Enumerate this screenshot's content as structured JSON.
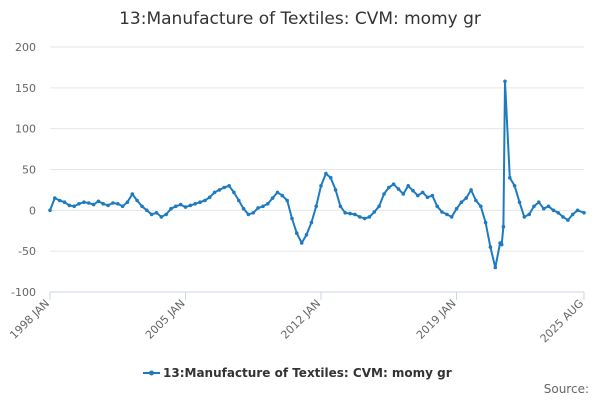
{
  "chart_data": {
    "type": "line",
    "title": "13:Manufacture of Textiles: CVM: momy gr",
    "xlabel": "",
    "ylabel": "",
    "ylim": [
      -100,
      200
    ],
    "yticks": [
      200,
      150,
      100,
      50,
      0,
      -50,
      -100
    ],
    "xticks": [
      "1998 JAN",
      "2005 JAN",
      "2012 JAN",
      "2019 JAN",
      "2025 AUG"
    ],
    "xtick_positions": [
      1998.0,
      2005.0,
      2012.0,
      2019.0,
      2025.583
    ],
    "xlim": [
      1998.0,
      2025.583
    ],
    "grid": true,
    "legend": "bottom-center",
    "series": [
      {
        "name": "13:Manufacture of Textiles: CVM: momy gr",
        "color": "#1f7bbf",
        "x": [
          1998.0,
          1998.25,
          1998.5,
          1998.75,
          1999.0,
          1999.25,
          1999.5,
          1999.75,
          2000.0,
          2000.25,
          2000.5,
          2000.75,
          2001.0,
          2001.25,
          2001.5,
          2001.75,
          2002.0,
          2002.25,
          2002.5,
          2002.75,
          2003.0,
          2003.25,
          2003.5,
          2003.75,
          2004.0,
          2004.25,
          2004.5,
          2004.75,
          2005.0,
          2005.25,
          2005.5,
          2005.75,
          2006.0,
          2006.25,
          2006.5,
          2006.75,
          2007.0,
          2007.25,
          2007.5,
          2007.75,
          2008.0,
          2008.25,
          2008.5,
          2008.75,
          2009.0,
          2009.25,
          2009.5,
          2009.75,
          2010.0,
          2010.25,
          2010.5,
          2010.75,
          2011.0,
          2011.25,
          2011.5,
          2011.75,
          2012.0,
          2012.25,
          2012.5,
          2012.75,
          2013.0,
          2013.25,
          2013.5,
          2013.75,
          2014.0,
          2014.25,
          2014.5,
          2014.75,
          2015.0,
          2015.25,
          2015.5,
          2015.75,
          2016.0,
          2016.25,
          2016.5,
          2016.75,
          2017.0,
          2017.25,
          2017.5,
          2017.75,
          2018.0,
          2018.25,
          2018.5,
          2018.75,
          2019.0,
          2019.25,
          2019.5,
          2019.75,
          2020.0,
          2020.25,
          2020.5,
          2020.75,
          2021.0,
          2021.25,
          2021.33,
          2021.42,
          2021.5,
          2021.75,
          2022.0,
          2022.25,
          2022.5,
          2022.75,
          2023.0,
          2023.25,
          2023.5,
          2023.75,
          2024.0,
          2024.25,
          2024.5,
          2024.75,
          2025.0,
          2025.25,
          2025.583
        ],
        "values": [
          0,
          15,
          12,
          10,
          6,
          5,
          8,
          10,
          9,
          7,
          11,
          8,
          6,
          9,
          8,
          5,
          10,
          20,
          12,
          5,
          0,
          -5,
          -3,
          -8,
          -5,
          2,
          5,
          7,
          4,
          6,
          8,
          10,
          12,
          16,
          22,
          25,
          28,
          30,
          22,
          12,
          2,
          -5,
          -3,
          3,
          5,
          8,
          15,
          22,
          18,
          12,
          -10,
          -28,
          -40,
          -30,
          -15,
          5,
          30,
          45,
          40,
          25,
          5,
          -3,
          -4,
          -5,
          -8,
          -10,
          -8,
          -2,
          5,
          20,
          28,
          32,
          26,
          20,
          30,
          24,
          18,
          22,
          16,
          18,
          5,
          -2,
          -5,
          -8,
          2,
          10,
          15,
          25,
          12,
          5,
          -15,
          -45,
          -70,
          -40,
          -42,
          -20,
          158,
          40,
          30,
          10,
          -8,
          -5,
          5,
          10,
          2,
          5,
          0,
          -3,
          -8,
          -12,
          -5,
          0,
          -3
        ]
      }
    ],
    "credits": "Source:"
  }
}
